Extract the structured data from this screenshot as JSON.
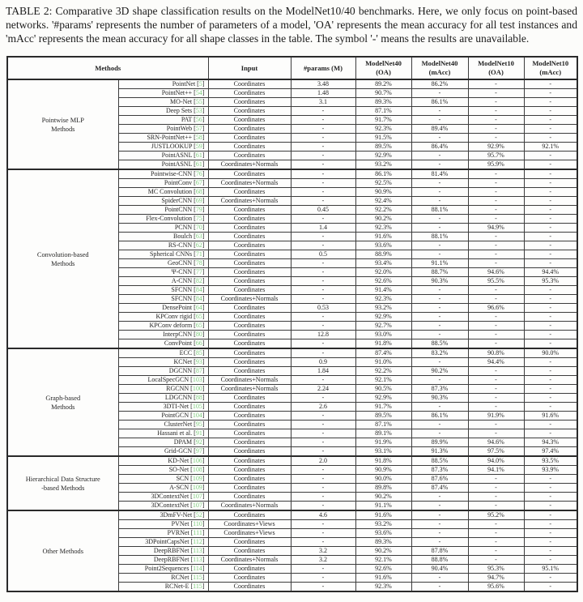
{
  "caption": "TABLE 2: Comparative 3D shape classification results on the ModelNet10/40 benchmarks. Here, we only focus on point-based networks. '#params' represents the number of parameters of a model, 'OA' represents the mean accuracy for all test instances and 'mAcc' represents the mean accuracy for all shape classes in the table. The symbol '-' means the results are unavailable.",
  "colors": {
    "citation_ref": "#7ccc7c",
    "border": "#3c3c3c"
  },
  "table": {
    "header": {
      "methods": "Methods",
      "input": "Input",
      "params": "#params (M)",
      "mn40_oa": [
        "ModelNet40",
        "(OA)"
      ],
      "mn40_macc": [
        "ModelNet40",
        "(mAcc)"
      ],
      "mn10_oa": [
        "ModelNet10",
        "(OA)"
      ],
      "mn10_macc": [
        "ModelNet10",
        "(mAcc)"
      ]
    },
    "groups": [
      {
        "name_lines": [
          "Pointwise MLP",
          "Methods"
        ],
        "rows": [
          {
            "method": "PointNet",
            "ref": "5",
            "input": "Coordinates",
            "params": "3.48",
            "oa40": "89.2%",
            "macc40": "86.2%",
            "oa10": "-",
            "macc10": "-"
          },
          {
            "method": "PointNet++",
            "ref": "54",
            "input": "Coordinates",
            "params": "1.48",
            "oa40": "90.7%",
            "macc40": "-",
            "oa10": "-",
            "macc10": "-"
          },
          {
            "method": "MO-Net",
            "ref": "55",
            "input": "Coordinates",
            "params": "3.1",
            "oa40": "89.3%",
            "macc40": "86.1%",
            "oa10": "-",
            "macc10": "-"
          },
          {
            "method": "Deep Sets",
            "ref": "53",
            "input": "Coordinates",
            "params": "-",
            "oa40": "87.1%",
            "macc40": "-",
            "oa10": "-",
            "macc10": "-"
          },
          {
            "method": "PAT",
            "ref": "56",
            "input": "Coordinates",
            "params": "-",
            "oa40": "91.7%",
            "macc40": "-",
            "oa10": "-",
            "macc10": "-"
          },
          {
            "method": "PointWeb",
            "ref": "57",
            "input": "Coordinates",
            "params": "-",
            "oa40": "92.3%",
            "macc40": "89.4%",
            "oa10": "-",
            "macc10": "-"
          },
          {
            "method": "SRN-PointNet++",
            "ref": "58",
            "input": "Coordinates",
            "params": "-",
            "oa40": "91.5%",
            "macc40": "-",
            "oa10": "-",
            "macc10": "-"
          },
          {
            "method": "JUSTLOOKUP",
            "ref": "59",
            "input": "Coordinates",
            "params": "-",
            "oa40": "89.5%",
            "macc40": "86.4%",
            "oa10": "92.9%",
            "macc10": "92.1%"
          },
          {
            "method": "PointASNL",
            "ref": "61",
            "input": "Coordinates",
            "params": "-",
            "oa40": "92.9%",
            "macc40": "-",
            "oa10": "95.7%",
            "macc10": "-"
          },
          {
            "method": "PointASNL",
            "ref": "61",
            "input": "Coordinates+Normals",
            "params": "-",
            "oa40": "93.2%",
            "macc40": "-",
            "oa10": "95.9%",
            "macc10": "-"
          }
        ]
      },
      {
        "name_lines": [
          "Convolution-based",
          "Methods"
        ],
        "rows": [
          {
            "method": "Pointwise-CNN",
            "ref": "76",
            "input": "Coordinates",
            "params": "-",
            "oa40": "86.1%",
            "macc40": "81.4%",
            "oa10": "-",
            "macc10": "-"
          },
          {
            "method": "PointConv",
            "ref": "67",
            "input": "Coordinates+Normals",
            "params": "-",
            "oa40": "92.5%",
            "macc40": "-",
            "oa10": "-",
            "macc10": "-"
          },
          {
            "method": "MC Convolution",
            "ref": "68",
            "input": "Coordinates",
            "params": "-",
            "oa40": "90.9%",
            "macc40": "-",
            "oa10": "-",
            "macc10": "-"
          },
          {
            "method": "SpiderCNN",
            "ref": "69",
            "input": "Coordinates+Normals",
            "params": "-",
            "oa40": "92.4%",
            "macc40": "-",
            "oa10": "-",
            "macc10": "-"
          },
          {
            "method": "PointCNN",
            "ref": "79",
            "input": "Coordinates",
            "params": "0.45",
            "oa40": "92.2%",
            "macc40": "88.1%",
            "oa10": "-",
            "macc10": "-"
          },
          {
            "method": "Flex-Convolution",
            "ref": "75",
            "input": "Coordinates",
            "params": "-",
            "oa40": "90.2%",
            "macc40": "-",
            "oa10": "-",
            "macc10": "-"
          },
          {
            "method": "PCNN",
            "ref": "70",
            "input": "Coordinates",
            "params": "1.4",
            "oa40": "92.3%",
            "macc40": "-",
            "oa10": "94.9%",
            "macc10": "-"
          },
          {
            "method": "Boulch",
            "ref": "63",
            "input": "Coordinates",
            "params": "-",
            "oa40": "91.6%",
            "macc40": "88.1%",
            "oa10": "-",
            "macc10": "-"
          },
          {
            "method": "RS-CNN",
            "ref": "62",
            "input": "Coordinates",
            "params": "-",
            "oa40": "93.6%",
            "macc40": "-",
            "oa10": "-",
            "macc10": "-"
          },
          {
            "method": "Spherical CNNs",
            "ref": "71",
            "input": "Coordinates",
            "params": "0.5",
            "oa40": "88.9%",
            "macc40": "-",
            "oa10": "-",
            "macc10": "-"
          },
          {
            "method": "GeoCNN",
            "ref": "78",
            "input": "Coordinates",
            "params": "-",
            "oa40": "93.4%",
            "macc40": "91.1%",
            "oa10": "-",
            "macc10": "-"
          },
          {
            "method": "Ψ-CNN",
            "ref": "77",
            "input": "Coordinates",
            "params": "-",
            "oa40": "92.0%",
            "macc40": "88.7%",
            "oa10": "94.6%",
            "macc10": "94.4%"
          },
          {
            "method": "A-CNN",
            "ref": "82",
            "input": "Coordinates",
            "params": "-",
            "oa40": "92.6%",
            "macc40": "90.3%",
            "oa10": "95.5%",
            "macc10": "95.3%"
          },
          {
            "method": "SFCNN",
            "ref": "84",
            "input": "Coordinates",
            "params": "-",
            "oa40": "91.4%",
            "macc40": "-",
            "oa10": "-",
            "macc10": "-"
          },
          {
            "method": "SFCNN",
            "ref": "84",
            "input": "Coordinates+Normals",
            "params": "-",
            "oa40": "92.3%",
            "macc40": "-",
            "oa10": "-",
            "macc10": "-"
          },
          {
            "method": "DensePoint",
            "ref": "64",
            "input": "Coordinates",
            "params": "0.53",
            "oa40": "93.2%",
            "macc40": "-",
            "oa10": "96.6%",
            "macc10": "-"
          },
          {
            "method": "KPConv rigid",
            "ref": "65",
            "input": "Coordinates",
            "params": "-",
            "oa40": "92.9%",
            "macc40": "-",
            "oa10": "-",
            "macc10": "-"
          },
          {
            "method": "KPConv deform",
            "ref": "65",
            "input": "Coordinates",
            "params": "-",
            "oa40": "92.7%",
            "macc40": "-",
            "oa10": "-",
            "macc10": "-"
          },
          {
            "method": "InterpCNN",
            "ref": "80",
            "input": "Coordinates",
            "params": "12.8",
            "oa40": "93.0%",
            "macc40": "-",
            "oa10": "-",
            "macc10": "-"
          },
          {
            "method": "ConvPoint",
            "ref": "66",
            "input": "Coordinates",
            "params": "-",
            "oa40": "91.8%",
            "macc40": "88.5%",
            "oa10": "-",
            "macc10": "-"
          }
        ]
      },
      {
        "name_lines": [
          "Graph-based",
          "Methods"
        ],
        "rows": [
          {
            "method": "ECC",
            "ref": "85",
            "input": "Coordinates",
            "params": "-",
            "oa40": "87.4%",
            "macc40": "83.2%",
            "oa10": "90.8%",
            "macc10": "90.0%"
          },
          {
            "method": "KCNet",
            "ref": "93",
            "input": "Coordinates",
            "params": "0.9",
            "oa40": "91.0%",
            "macc40": "-",
            "oa10": "94.4%",
            "macc10": "-"
          },
          {
            "method": "DGCNN",
            "ref": "87",
            "input": "Coordinates",
            "params": "1.84",
            "oa40": "92.2%",
            "macc40": "90.2%",
            "oa10": "-",
            "macc10": "-"
          },
          {
            "method": "LocalSpecGCN",
            "ref": "103",
            "input": "Coordinates+Normals",
            "params": "-",
            "oa40": "92.1%",
            "macc40": "-",
            "oa10": "-",
            "macc10": "-"
          },
          {
            "method": "RGCNN",
            "ref": "100",
            "input": "Coordinates+Normals",
            "params": "2.24",
            "oa40": "90.5%",
            "macc40": "87.3%",
            "oa10": "-",
            "macc10": "-"
          },
          {
            "method": "LDGCNN",
            "ref": "88",
            "input": "Coordinates",
            "params": "-",
            "oa40": "92.9%",
            "macc40": "90.3%",
            "oa10": "-",
            "macc10": "-"
          },
          {
            "method": "3DTI-Net",
            "ref": "105",
            "input": "Coordinates",
            "params": "2.6",
            "oa40": "91.7%",
            "macc40": "-",
            "oa10": "-",
            "macc10": "-"
          },
          {
            "method": "PointGCN",
            "ref": "104",
            "input": "Coordinates",
            "params": "-",
            "oa40": "89.5%",
            "macc40": "86.1%",
            "oa10": "91.9%",
            "macc10": "91.6%"
          },
          {
            "method": "ClusterNet",
            "ref": "95",
            "input": "Coordinates",
            "params": "-",
            "oa40": "87.1%",
            "macc40": "-",
            "oa10": "-",
            "macc10": "-"
          },
          {
            "method": "Hassani et al.",
            "ref": "91",
            "input": "Coordinates",
            "params": "-",
            "oa40": "89.1%",
            "macc40": "-",
            "oa10": "-",
            "macc10": "-"
          },
          {
            "method": "DPAM",
            "ref": "92",
            "input": "Coordinates",
            "params": "-",
            "oa40": "91.9%",
            "macc40": "89.9%",
            "oa10": "94.6%",
            "macc10": "94.3%"
          },
          {
            "method": "Grid-GCN",
            "ref": "97",
            "input": "Coordinates",
            "params": "-",
            "oa40": "93.1%",
            "macc40": "91.3%",
            "oa10": "97.5%",
            "macc10": "97.4%"
          }
        ]
      },
      {
        "name_lines": [
          "Hierarchical Data Structure",
          "-based Methods"
        ],
        "rows": [
          {
            "method": "KD-Net",
            "ref": "106",
            "input": "Coordinates",
            "params": "2.0",
            "oa40": "91.8%",
            "macc40": "88.5%",
            "oa10": "94.0%",
            "macc10": "93.5%"
          },
          {
            "method": "SO-Net",
            "ref": "108",
            "input": "Coordinates",
            "params": "-",
            "oa40": "90.9%",
            "macc40": "87.3%",
            "oa10": "94.1%",
            "macc10": "93.9%"
          },
          {
            "method": "SCN",
            "ref": "109",
            "input": "Coordinates",
            "params": "-",
            "oa40": "90.0%",
            "macc40": "87.6%",
            "oa10": "-",
            "macc10": "-"
          },
          {
            "method": "A-SCN",
            "ref": "109",
            "input": "Coordinates",
            "params": "-",
            "oa40": "89.8%",
            "macc40": "87.4%",
            "oa10": "-",
            "macc10": "-"
          },
          {
            "method": "3DContextNet",
            "ref": "107",
            "input": "Coordinates",
            "params": "-",
            "oa40": "90.2%",
            "macc40": "-",
            "oa10": "-",
            "macc10": "-"
          },
          {
            "method": "3DContextNet",
            "ref": "107",
            "input": "Coordinates+Normals",
            "params": "-",
            "oa40": "91.1%",
            "macc40": "-",
            "oa10": "-",
            "macc10": "-"
          }
        ]
      },
      {
        "name_lines": [
          "Other Methods"
        ],
        "rows": [
          {
            "method": "3DmFV-Net",
            "ref": "52",
            "input": "Coordinates",
            "params": "4.6",
            "oa40": "91.6%",
            "macc40": "-",
            "oa10": "95.2%",
            "macc10": "-"
          },
          {
            "method": "PVNet",
            "ref": "110",
            "input": "Coordinates+Views",
            "params": "-",
            "oa40": "93.2%",
            "macc40": "-",
            "oa10": "-",
            "macc10": "-"
          },
          {
            "method": "PVRNet",
            "ref": "111",
            "input": "Coordinates+Views",
            "params": "-",
            "oa40": "93.6%",
            "macc40": "-",
            "oa10": "-",
            "macc10": "-"
          },
          {
            "method": "3DPointCapsNet",
            "ref": "112",
            "input": "Coordinates",
            "params": "-",
            "oa40": "89.3%",
            "macc40": "-",
            "oa10": "-",
            "macc10": "-"
          },
          {
            "method": "DeepRBFNet",
            "ref": "113",
            "input": "Coordinates",
            "params": "3.2",
            "oa40": "90.2%",
            "macc40": "87.8%",
            "oa10": "-",
            "macc10": "-"
          },
          {
            "method": "DeepRBFNet",
            "ref": "113",
            "input": "Coordinates+Normals",
            "params": "3.2",
            "oa40": "92.1%",
            "macc40": "88.8%",
            "oa10": "-",
            "macc10": "-"
          },
          {
            "method": "Point2Sequences",
            "ref": "114",
            "input": "Coordinates",
            "params": "-",
            "oa40": "92.6%",
            "macc40": "90.4%",
            "oa10": "95.3%",
            "macc10": "95.1%"
          },
          {
            "method": "RCNet",
            "ref": "115",
            "input": "Coordinates",
            "params": "-",
            "oa40": "91.6%",
            "macc40": "-",
            "oa10": "94.7%",
            "macc10": "-"
          },
          {
            "method": "RCNet-E",
            "ref": "115",
            "input": "Coordinates",
            "params": "-",
            "oa40": "92.3%",
            "macc40": "-",
            "oa10": "95.6%",
            "macc10": "-"
          }
        ]
      }
    ]
  }
}
